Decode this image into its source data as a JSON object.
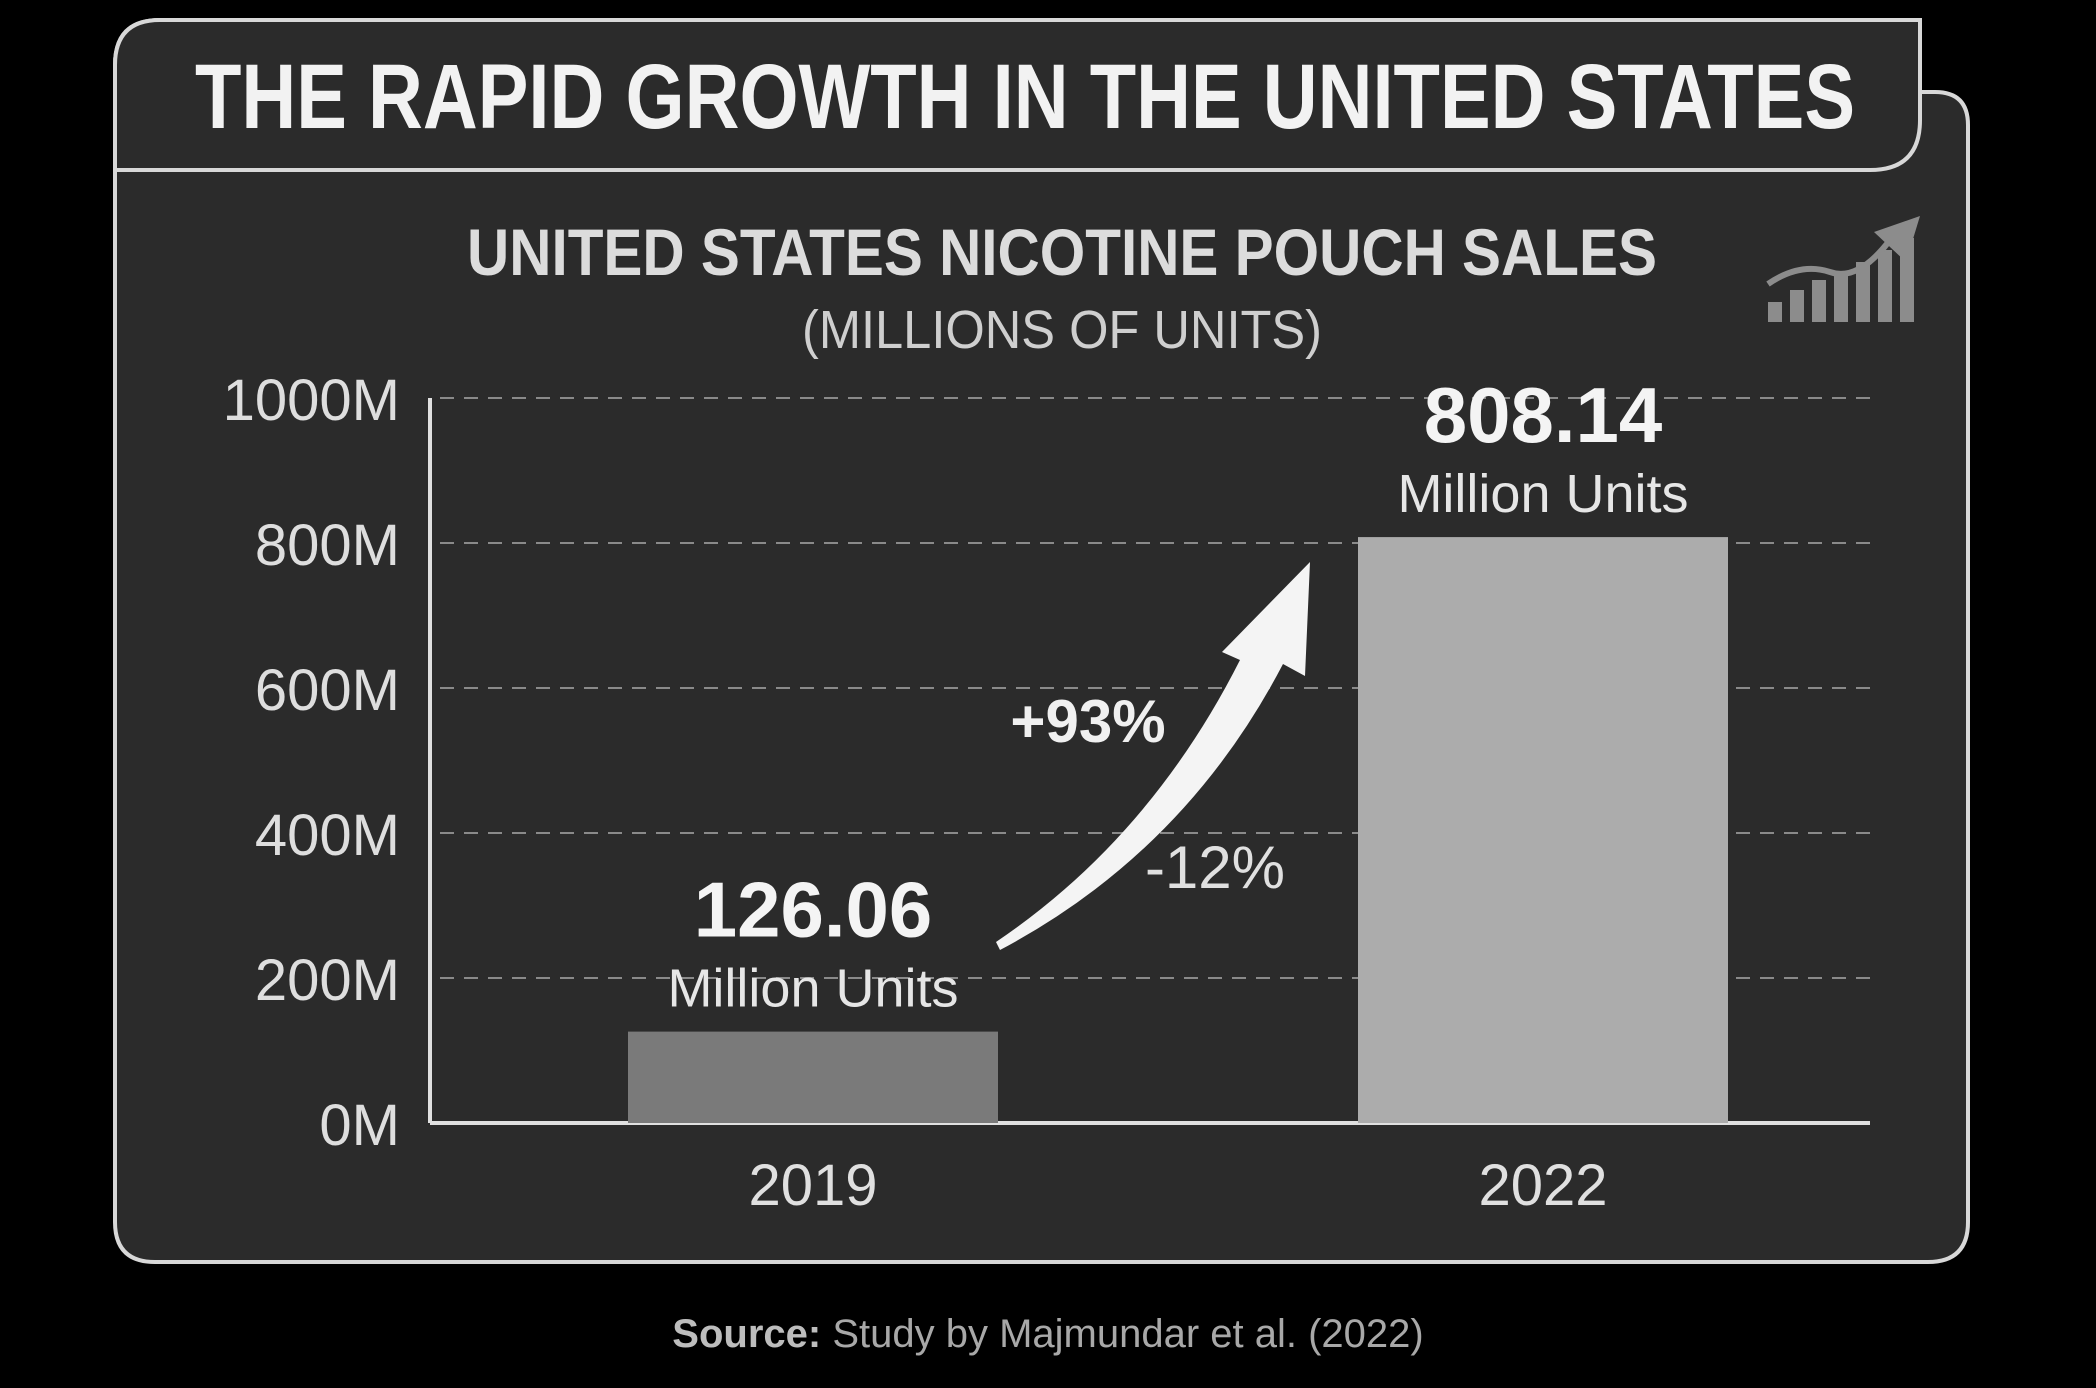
{
  "chart_data": {
    "type": "bar",
    "banner_title": "THE RAPID GROWTH IN THE UNITED STATES",
    "title": "UNITED STATES NICOTINE POUCH SALES",
    "subtitle": "(MILLIONS OF UNITS)",
    "categories": [
      "2019",
      "2022"
    ],
    "values": [
      126.06,
      808.14
    ],
    "value_labels": [
      "126.06",
      "808.14"
    ],
    "unit_labels": [
      "Million Units",
      "Million Units"
    ],
    "bar_colors": [
      "#7a7a7a",
      "#acacac"
    ],
    "yticks": [
      0,
      200,
      400,
      600,
      800,
      1000
    ],
    "ytick_labels": [
      "0M",
      "200M",
      "400M",
      "600M",
      "800M",
      "1000M"
    ],
    "ylim": [
      0,
      1000
    ],
    "grid": true,
    "annotations": [
      "+93%",
      "-12%"
    ],
    "icon": "growth-chart-icon"
  },
  "source": {
    "label": "Source:",
    "text": " Study by Majmundar et al. (2022)"
  },
  "colors": {
    "background": "#000000",
    "panel": "#2b2b2b",
    "panel_border": "#d8d8d8",
    "text": "#e6e6e6"
  }
}
